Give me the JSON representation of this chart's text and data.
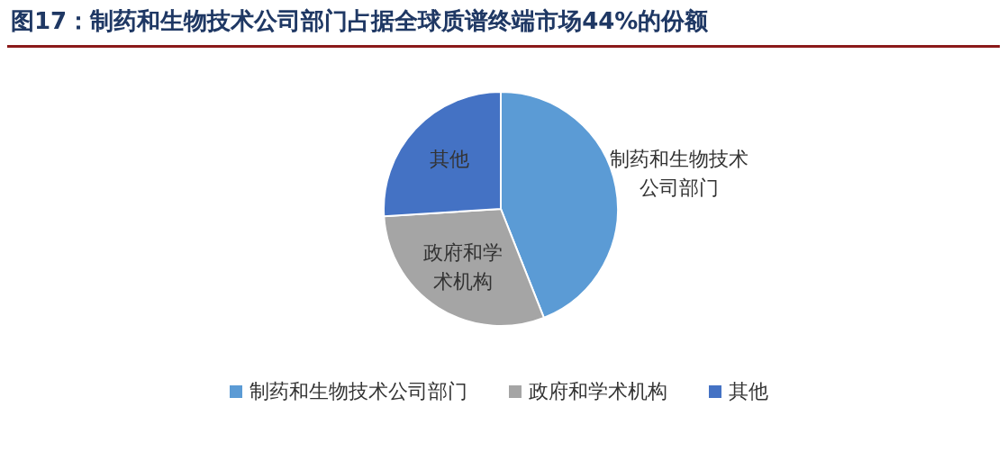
{
  "chart_data": {
    "type": "pie",
    "title": "图17：制药和生物技术公司部门占据全球质谱终端市场44%的份额",
    "categories": [
      "制药和生物技术公司部门",
      "政府和学术机构",
      "其他"
    ],
    "values": [
      44,
      30,
      26
    ],
    "colors": [
      "#5b9bd5",
      "#a5a5a5",
      "#4472c4"
    ],
    "legend": "bottom"
  }
}
